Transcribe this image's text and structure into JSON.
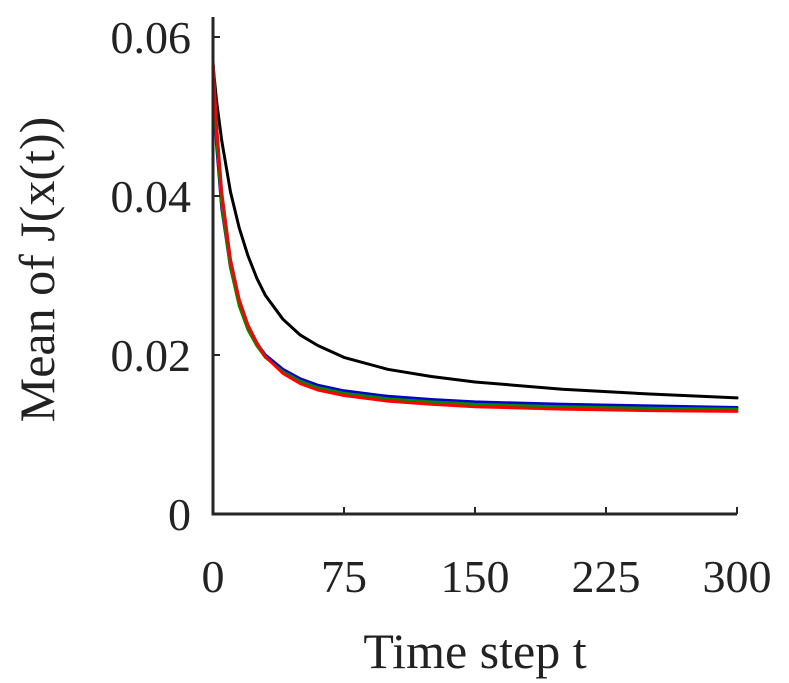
{
  "chart_data": {
    "type": "line",
    "title": "",
    "xlabel": "Time step t",
    "ylabel": "Mean of J(x(t))",
    "xlim": [
      0,
      300
    ],
    "ylim": [
      0,
      0.06
    ],
    "grid": false,
    "legend": "none",
    "xticks": [
      0,
      75,
      150,
      225,
      300
    ],
    "xtick_labels": [
      "0",
      "75",
      "150",
      "225",
      "300"
    ],
    "yticks": [
      0,
      0.02,
      0.04,
      0.06
    ],
    "ytick_labels": [
      "0",
      "0.02",
      "0.04",
      "0.06"
    ],
    "x": [
      0,
      2,
      5,
      10,
      15,
      20,
      25,
      30,
      40,
      50,
      60,
      75,
      100,
      125,
      150,
      200,
      250,
      300
    ],
    "series": [
      {
        "color": "#000000",
        "values": [
          0.0565,
          0.052,
          0.047,
          0.0405,
          0.036,
          0.0325,
          0.0297,
          0.0275,
          0.0245,
          0.0225,
          0.0212,
          0.0197,
          0.0182,
          0.0173,
          0.0166,
          0.0157,
          0.0151,
          0.0146
        ]
      },
      {
        "color": "#0000cc",
        "values": [
          0.0565,
          0.0465,
          0.0385,
          0.031,
          0.0265,
          0.0235,
          0.0215,
          0.02,
          0.0182,
          0.017,
          0.0162,
          0.0155,
          0.0148,
          0.0144,
          0.0141,
          0.0138,
          0.0136,
          0.0134
        ]
      },
      {
        "color": "#008800",
        "values": [
          0.0565,
          0.0475,
          0.039,
          0.031,
          0.0262,
          0.0232,
          0.0212,
          0.0197,
          0.0179,
          0.0167,
          0.0159,
          0.0152,
          0.0145,
          0.0141,
          0.0138,
          0.0135,
          0.0133,
          0.0132
        ]
      },
      {
        "color": "#ff0000",
        "values": [
          0.057,
          0.049,
          0.0405,
          0.032,
          0.027,
          0.0238,
          0.0216,
          0.0198,
          0.0177,
          0.0164,
          0.0156,
          0.0149,
          0.0142,
          0.0138,
          0.0135,
          0.0132,
          0.013,
          0.0129
        ]
      }
    ]
  }
}
